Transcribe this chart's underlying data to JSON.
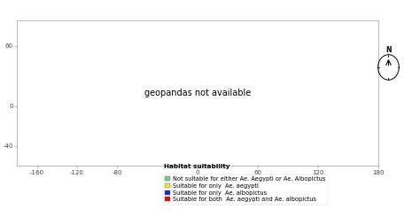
{
  "background_color": "#ffffff",
  "legend_title": "Habitat suitability",
  "legend_items": [
    {
      "label": "Not suitable for either Ae. Aegypti or Ae. Albopictus",
      "color": "#7ecb7e"
    },
    {
      "label": "Suitable for only  Ae. aegypti",
      "color": "#e8e840"
    },
    {
      "label": "Suitable for only  Ae. albopictus",
      "color": "#2222cc"
    },
    {
      "label": "Suitable for both  Ae. aegypti and Ae. albopictus",
      "color": "#cc1111"
    }
  ],
  "tick_fontsize": 5.0,
  "legend_fontsize": 4.8,
  "legend_title_fontsize": 5.2,
  "xticks": [
    -160,
    -120,
    -80,
    0,
    60,
    120,
    180
  ],
  "ytick_labels": [
    "60",
    "0",
    "-40"
  ],
  "ytick_vals": [
    60,
    0,
    -40
  ],
  "colors": {
    "green": "#7ecb7e",
    "yellow": "#e8e840",
    "blue": "#2222cc",
    "red": "#cc1111",
    "ocean": "#ffffff",
    "border": "#999999"
  }
}
